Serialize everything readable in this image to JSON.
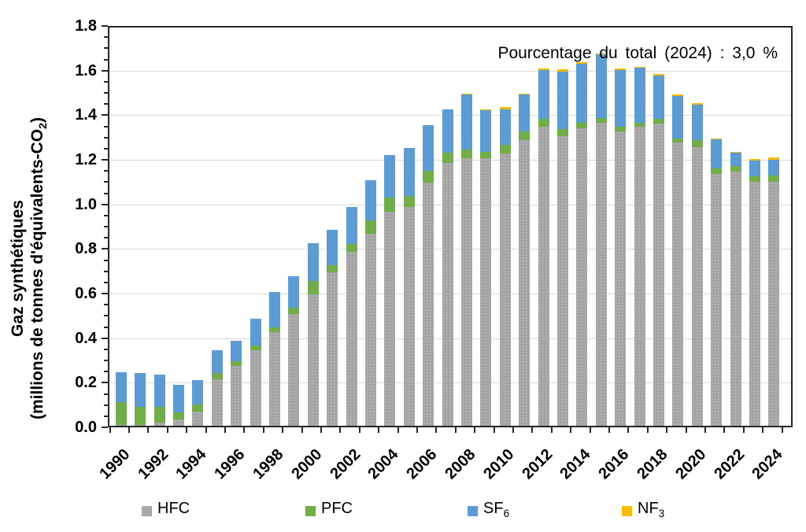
{
  "annotation": "Pourcentage du total (2024) : 3,0 %",
  "y_axis_title": {
    "line1": "Gaz synthétiques",
    "line2_pre": "(millions de tonnes d'équivalents-CO",
    "line2_sub": "2",
    "line2_post": ")"
  },
  "chart_data": {
    "type": "bar",
    "stacked": true,
    "title": "",
    "xlabel": "",
    "ylabel": "Gaz synthétiques (millions de tonnes d'équivalents-CO2)",
    "ylim": [
      0,
      1.8
    ],
    "ytick_step": 0.2,
    "ytick_minor_step": 0.05,
    "ytick_labels": [
      "0.0",
      "0.2",
      "0.4",
      "0.6",
      "0.8",
      "1.0",
      "1.2",
      "1.4",
      "1.6",
      "1.8"
    ],
    "grid": "horizontal",
    "legend_position": "bottom",
    "categories": [
      1990,
      1991,
      1992,
      1993,
      1994,
      1995,
      1996,
      1997,
      1998,
      1999,
      2000,
      2001,
      2002,
      2003,
      2004,
      2005,
      2006,
      2007,
      2008,
      2009,
      2010,
      2011,
      2012,
      2013,
      2014,
      2015,
      2016,
      2017,
      2018,
      2019,
      2020,
      2021,
      2022,
      2023,
      2024
    ],
    "xtick_labels": [
      "1990",
      "1992",
      "1994",
      "1996",
      "1998",
      "2000",
      "2002",
      "2004",
      "2006",
      "2008",
      "2010",
      "2012",
      "2014",
      "2016",
      "2018",
      "2020",
      "2022",
      "2024"
    ],
    "xtick_label_every": 2,
    "series": [
      {
        "name": "HFC",
        "color": "#a6a6a6",
        "values": [
          0.005,
          0.005,
          0.015,
          0.03,
          0.065,
          0.21,
          0.27,
          0.34,
          0.42,
          0.5,
          0.59,
          0.69,
          0.78,
          0.86,
          0.96,
          0.98,
          1.09,
          1.18,
          1.2,
          1.2,
          1.22,
          1.28,
          1.34,
          1.3,
          1.335,
          1.36,
          1.32,
          1.34,
          1.355,
          1.27,
          1.25,
          1.13,
          1.14,
          1.095,
          1.095
        ]
      },
      {
        "name": "PFC",
        "color": "#70ad47",
        "values": [
          0.1,
          0.08,
          0.07,
          0.03,
          0.03,
          0.025,
          0.02,
          0.02,
          0.02,
          0.03,
          0.06,
          0.03,
          0.035,
          0.06,
          0.065,
          0.05,
          0.055,
          0.045,
          0.04,
          0.03,
          0.04,
          0.04,
          0.035,
          0.03,
          0.025,
          0.02,
          0.022,
          0.02,
          0.02,
          0.02,
          0.03,
          0.025,
          0.025,
          0.025,
          0.028
        ]
      },
      {
        "name": "SF6",
        "color": "#5b9bd5",
        "values": [
          0.135,
          0.15,
          0.145,
          0.125,
          0.11,
          0.105,
          0.09,
          0.12,
          0.16,
          0.14,
          0.17,
          0.16,
          0.165,
          0.18,
          0.19,
          0.215,
          0.205,
          0.195,
          0.245,
          0.185,
          0.16,
          0.165,
          0.22,
          0.26,
          0.265,
          0.285,
          0.255,
          0.245,
          0.195,
          0.19,
          0.16,
          0.13,
          0.06,
          0.07,
          0.07
        ]
      },
      {
        "name": "NF3",
        "color": "#ffc000",
        "values": [
          0,
          0,
          0,
          0,
          0,
          0,
          0,
          0,
          0,
          0,
          0,
          0,
          0,
          0,
          0,
          0,
          0,
          0,
          0.005,
          0.005,
          0.008,
          0.005,
          0.008,
          0.01,
          0.005,
          0.005,
          0.005,
          0.006,
          0.006,
          0.005,
          0.006,
          0.005,
          0.005,
          0.008,
          0.009
        ]
      }
    ],
    "legend": [
      {
        "label": "HFC",
        "sub": ""
      },
      {
        "label": "PFC",
        "sub": ""
      },
      {
        "label": "SF",
        "sub": "6"
      },
      {
        "label": "NF",
        "sub": "3"
      }
    ]
  }
}
